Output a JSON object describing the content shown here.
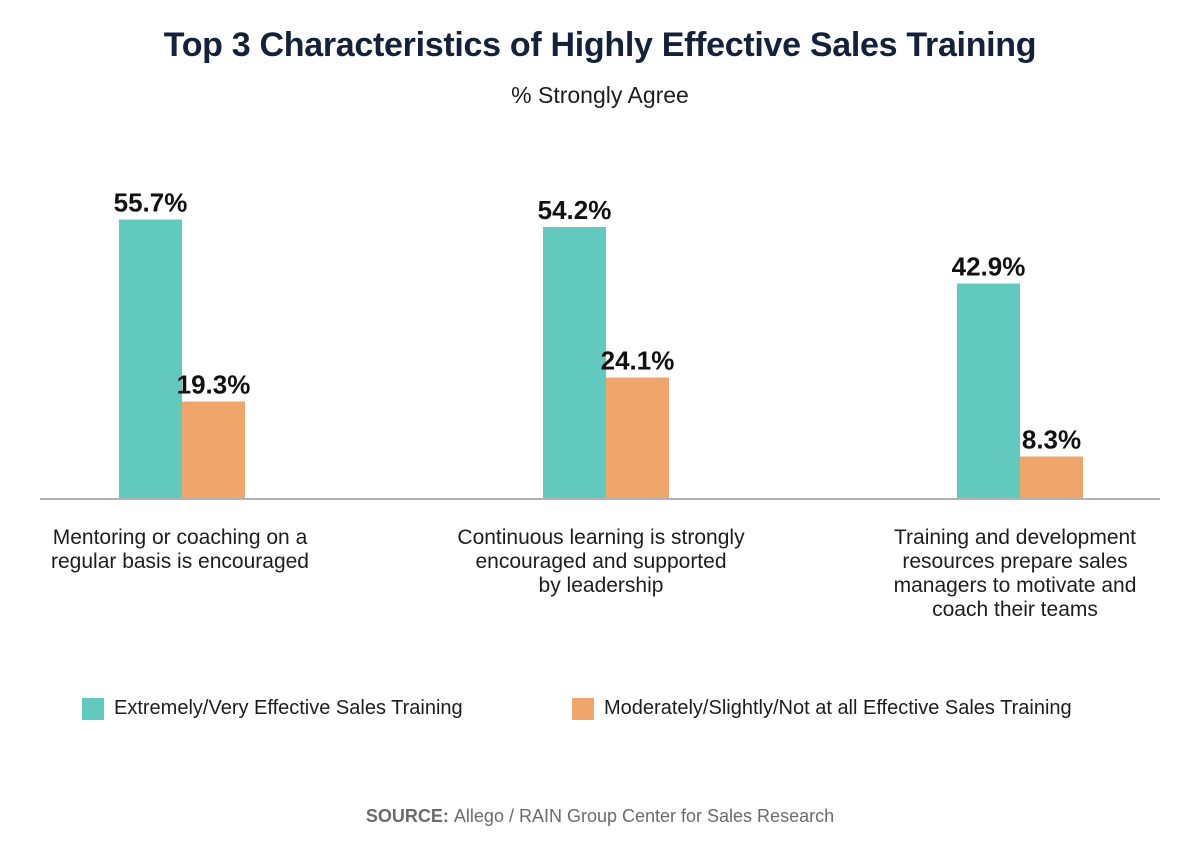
{
  "chart_data": {
    "type": "bar",
    "title": "Top 3 Characteristics of Highly Effective Sales Training",
    "subtitle": "% Strongly Agree",
    "categories": [
      [
        "Mentoring or coaching on a",
        "regular basis is encouraged"
      ],
      [
        "Continuous learning is strongly",
        "encouraged and supported",
        "by leadership"
      ],
      [
        "Training and development",
        "resources prepare sales",
        "managers to motivate and",
        "coach their teams"
      ]
    ],
    "series": [
      {
        "name": "Extremely/Very Effective Sales Training",
        "values": [
          55.7,
          54.2,
          42.9
        ],
        "labels": [
          "55.7%",
          "54.2%",
          "42.9%"
        ],
        "color": "#62c9bf"
      },
      {
        "name": "Moderately/Slightly/Not at all Effective Sales Training",
        "values": [
          19.3,
          24.1,
          8.3
        ],
        "labels": [
          "19.3%",
          "24.1%",
          "8.3%"
        ],
        "color": "#f0a56a"
      }
    ],
    "ylim": [
      0,
      60
    ],
    "grid": false,
    "legend_position": "bottom"
  },
  "source": {
    "label": "SOURCE:",
    "text": "Allego / RAIN Group Center for Sales Research"
  },
  "colors": {
    "title": "#14213a",
    "axis": "#b3b3b3",
    "label": "#111111"
  }
}
